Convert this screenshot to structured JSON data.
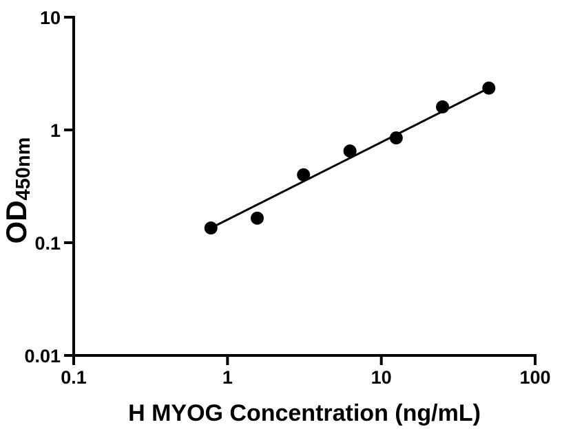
{
  "chart_data": {
    "type": "scatter",
    "title": "",
    "xlabel": "H MYOG Concentration (ng/mL)",
    "ylabel": "OD450nm",
    "ylabel_main": "OD",
    "ylabel_sub": "450nm",
    "xscale": "log",
    "yscale": "log",
    "xlim": [
      0.1,
      100
    ],
    "ylim": [
      0.01,
      10
    ],
    "x_tick_values": [
      0.1,
      1,
      10,
      100
    ],
    "x_tick_labels": [
      "0.1",
      "1",
      "10",
      "100"
    ],
    "y_tick_values": [
      0.01,
      0.1,
      1,
      10
    ],
    "y_tick_labels": [
      "0.01",
      "0.1",
      "1",
      "10"
    ],
    "grid": false,
    "legend": null,
    "series": [
      {
        "name": "standard-points",
        "type": "scatter",
        "marker": "filled-circle",
        "color": "#000000",
        "points": [
          {
            "x": 0.78,
            "y": 0.135
          },
          {
            "x": 1.56,
            "y": 0.165
          },
          {
            "x": 3.12,
            "y": 0.4
          },
          {
            "x": 6.25,
            "y": 0.65
          },
          {
            "x": 12.5,
            "y": 0.85
          },
          {
            "x": 25,
            "y": 1.6
          },
          {
            "x": 50,
            "y": 2.35
          }
        ]
      },
      {
        "name": "fit-line",
        "type": "line",
        "color": "#000000",
        "points": [
          {
            "x": 0.78,
            "y": 0.135
          },
          {
            "x": 50,
            "y": 2.35
          }
        ]
      }
    ],
    "colors": {
      "axis": "#000000",
      "marker": "#000000",
      "line": "#000000",
      "background": "#ffffff"
    }
  }
}
